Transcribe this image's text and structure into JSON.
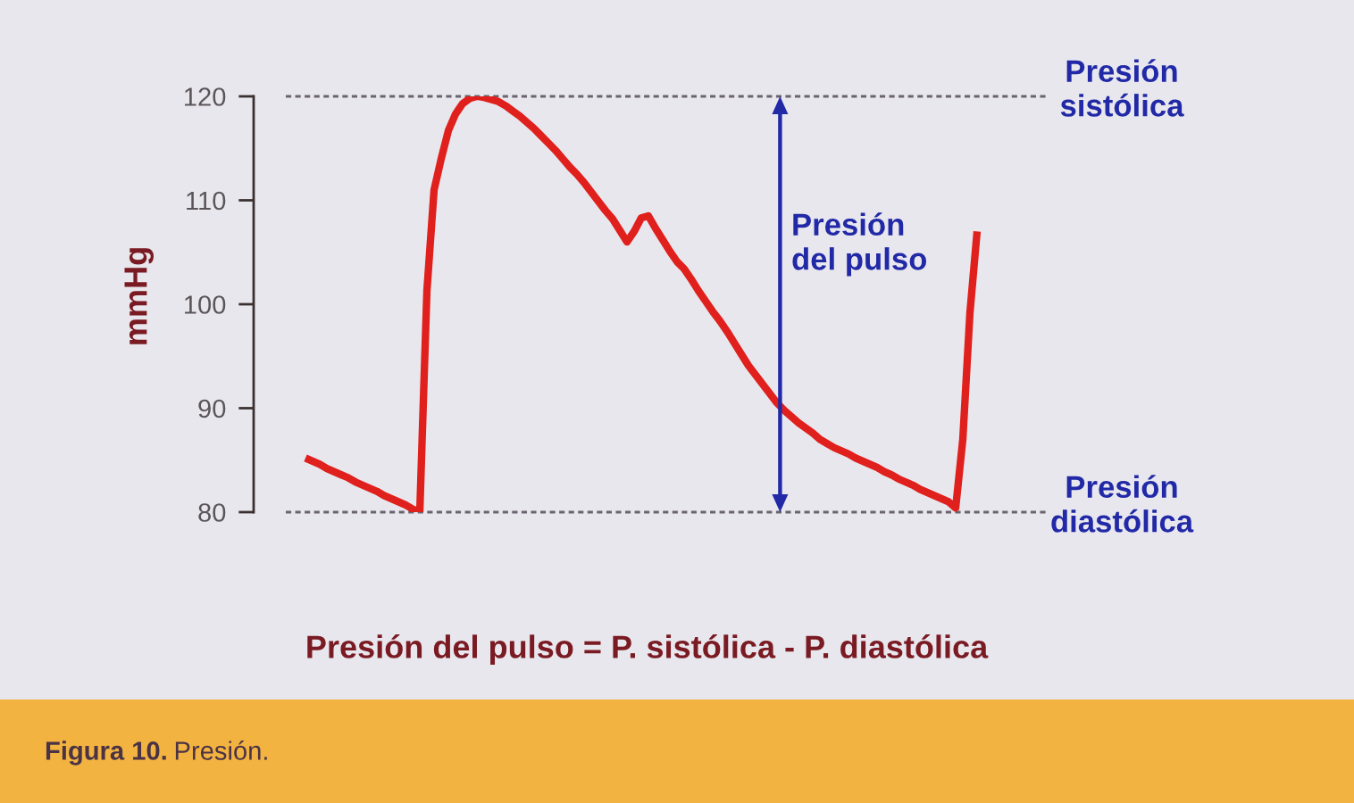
{
  "chart_data": {
    "type": "line",
    "ylabel": "mmHg",
    "categories": [
      null,
      null,
      null,
      null,
      null,
      null,
      null,
      null,
      null,
      null,
      null,
      null,
      null,
      null,
      null,
      null,
      null,
      null,
      null,
      null,
      null,
      null,
      null,
      null,
      null,
      null,
      null,
      null,
      null,
      null,
      null,
      null,
      null,
      null,
      null,
      null,
      null,
      null,
      null,
      null,
      null,
      null,
      null,
      null,
      null,
      null,
      null,
      null,
      null,
      null,
      null,
      null,
      null,
      null,
      null,
      null,
      null,
      null,
      null,
      null,
      null,
      null,
      null,
      null,
      null,
      null,
      null,
      null,
      null,
      null,
      null,
      null,
      null,
      null,
      null,
      null,
      null,
      null,
      null,
      null,
      null,
      null,
      null,
      null,
      null,
      null,
      null,
      null,
      null,
      null,
      null,
      null,
      null,
      null,
      null
    ],
    "series": [
      {
        "color": "#e0201c",
        "values": [
          85.2,
          84.9,
          84.6,
          84.2,
          83.9,
          83.6,
          83.3,
          82.9,
          82.6,
          82.3,
          82.0,
          81.6,
          81.3,
          81.0,
          80.7,
          80.3,
          80.0,
          101.3,
          111.0,
          114.0,
          116.7,
          118.3,
          119.3,
          119.8,
          120.0,
          119.9,
          119.7,
          119.5,
          119.1,
          118.6,
          118.1,
          117.5,
          116.9,
          116.2,
          115.5,
          114.8,
          114.0,
          113.2,
          112.5,
          111.7,
          110.8,
          109.9,
          109.0,
          108.2,
          107.1,
          106.0,
          107.0,
          108.3,
          108.5,
          107.3,
          106.2,
          105.1,
          104.1,
          103.4,
          102.4,
          101.3,
          100.3,
          99.3,
          98.4,
          97.4,
          96.3,
          95.2,
          94.1,
          93.2,
          92.3,
          91.4,
          90.5,
          89.8,
          89.2,
          88.6,
          88.1,
          87.6,
          87.0,
          86.6,
          86.2,
          85.9,
          85.6,
          85.2,
          84.9,
          84.6,
          84.3,
          83.9,
          83.6,
          83.2,
          82.9,
          82.6,
          82.2,
          81.9,
          81.6,
          81.3,
          81.0,
          80.4,
          87.0,
          99.2,
          107.0
        ]
      }
    ],
    "ylim": [
      80,
      120
    ],
    "yticks": [
      80,
      90,
      100,
      110,
      120
    ],
    "tick_labels": "y",
    "line_style": "solid",
    "ref_lines": [
      {
        "axis": "y",
        "value": 120,
        "label": "Presión sistólica",
        "color": "#6a6470",
        "line_style": "dashed"
      },
      {
        "axis": "y",
        "value": 80,
        "label": "Presión diastólica",
        "color": "#6a6470",
        "line_style": "dashed"
      }
    ],
    "annotations": [
      "Presión del pulso",
      "Presión del pulso = P. sistólica - P. diastólica",
      "Figura 10. Presión."
    ]
  }
}
